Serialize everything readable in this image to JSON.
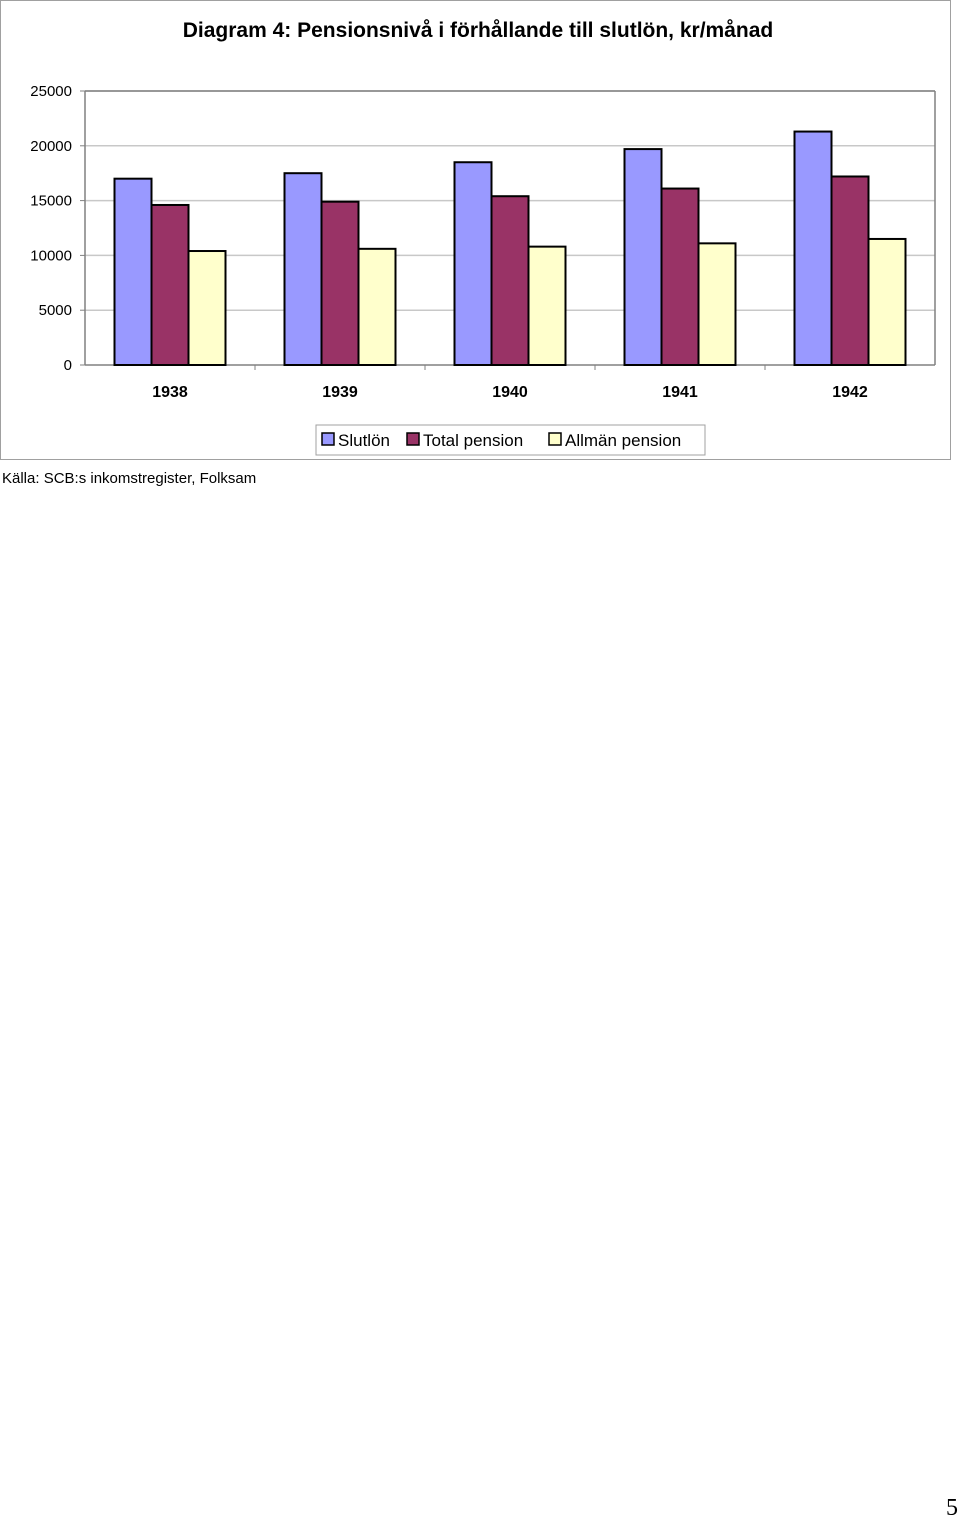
{
  "chart_data": {
    "type": "bar",
    "title": "Diagram 4: Pensionsnivå i förhållande till slutlön, kr/månad",
    "xlabel": "",
    "ylabel": "",
    "categories": [
      "1938",
      "1939",
      "1940",
      "1941",
      "1942"
    ],
    "ylim": [
      0,
      25000
    ],
    "yticks": [
      "0",
      "5000",
      "10000",
      "15000",
      "20000",
      "25000"
    ],
    "grid": true,
    "legend_position": "bottom-right",
    "series": [
      {
        "name": "Slutlön",
        "values": [
          17000,
          17500,
          18500,
          19700,
          21300
        ],
        "color": "#9999ff"
      },
      {
        "name": "Total pension",
        "values": [
          14600,
          14900,
          15400,
          16100,
          17200
        ],
        "color": "#993366"
      },
      {
        "name": "Allmän pension",
        "values": [
          10400,
          10600,
          10800,
          11100,
          11500
        ],
        "color": "#ffffcc"
      }
    ]
  },
  "source_note": "Källa: SCB:s inkomstregister, Folksam",
  "page_number": "5"
}
